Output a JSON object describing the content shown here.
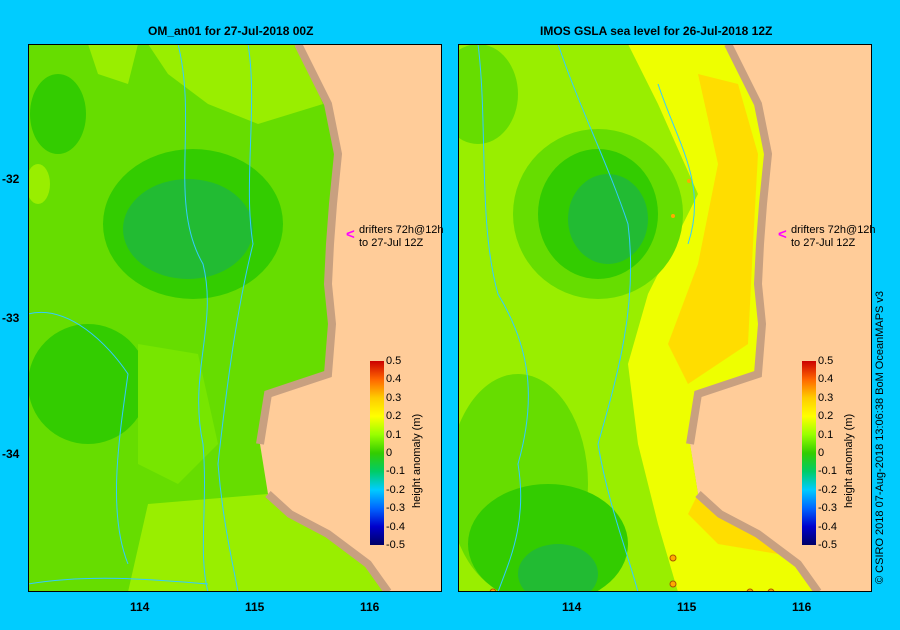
{
  "left": {
    "title": "OM_an01  for 27-Jul-2018 00Z",
    "drifters_line1": "drifters 72h@12h",
    "drifters_line2": "to 27-Jul 12Z",
    "colorbar_title": "height anomaly (m)"
  },
  "right": {
    "title": "IMOS GSLA sea level  for 26-Jul-2018 12Z",
    "drifters_line1": "drifters 72h@12h",
    "drifters_line2": "to 27-Jul 12Z",
    "colorbar_title": "height anomaly (m)"
  },
  "y_ticks": [
    "-32",
    "-33",
    "-34"
  ],
  "x_ticks": [
    "114",
    "115",
    "116"
  ],
  "colorbar_ticks": [
    "0.5",
    "0.4",
    "0.3",
    "0.2",
    "0.1",
    "0",
    "-0.1",
    "-0.2",
    "-0.3",
    "-0.4",
    "-0.5"
  ],
  "credit": "© CSIRO 2018   07-Aug-2018 13:06:38 BoM OceanMAPS v3",
  "colors": {
    "background": "#00ccff",
    "land": "#ffcc99",
    "coast": "#c8a080",
    "drifter_arrow": "#ff00ff",
    "current_lines": "#33ccff"
  }
}
